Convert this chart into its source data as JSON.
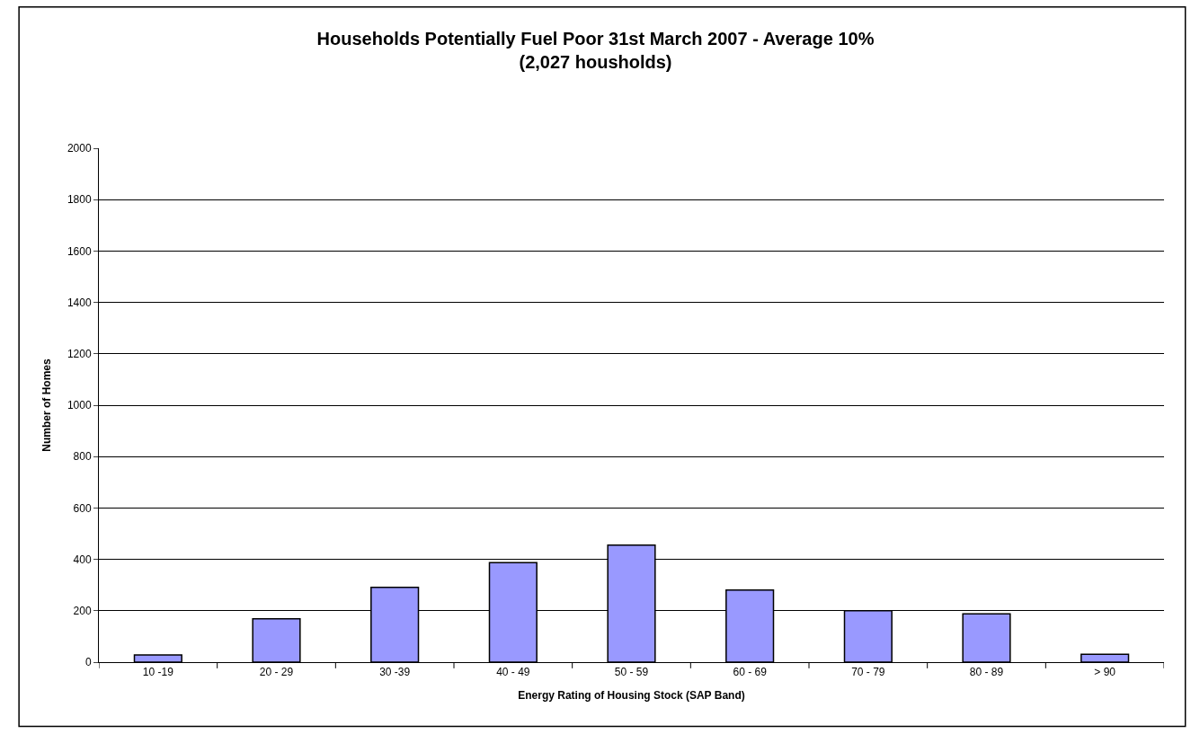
{
  "chart_data": {
    "type": "bar",
    "title": "Households Potentially Fuel Poor 31st March 2007 - Average 10%\n(2,027 housholds)",
    "xlabel": "Energy Rating of Housing Stock (SAP Band)",
    "ylabel": "Number of Homes",
    "categories": [
      "10 -19",
      "20 - 29",
      "30 -39",
      "40 - 49",
      "50 - 59",
      "60 - 69",
      "70 - 79",
      "80 - 89",
      "> 90"
    ],
    "values": [
      28,
      169,
      291,
      387,
      455,
      281,
      200,
      188,
      31
    ],
    "color": "#9999ff",
    "ylim": [
      0,
      2000
    ],
    "yticks": [
      0,
      200,
      400,
      600,
      800,
      1000,
      1200,
      1400,
      1600,
      1800,
      2000
    ],
    "grid": "y",
    "legend": false
  }
}
